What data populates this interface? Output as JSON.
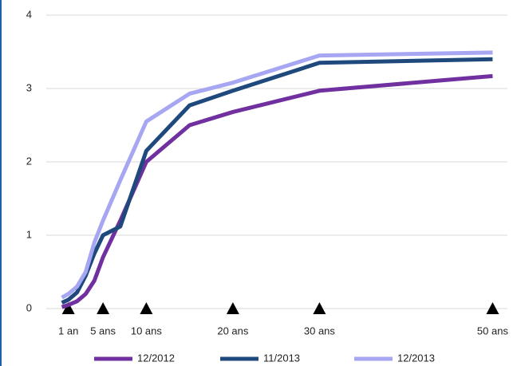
{
  "chart_data": {
    "type": "line",
    "x": [
      0.25,
      1,
      2,
      3,
      4,
      5,
      7,
      10,
      15,
      20,
      30,
      50
    ],
    "series": [
      {
        "name": "12/2012",
        "color": "#7030a0",
        "values": [
          0.02,
          0.05,
          0.1,
          0.2,
          0.38,
          0.7,
          1.2,
          2.0,
          2.5,
          2.68,
          2.97,
          3.17
        ]
      },
      {
        "name": "11/2013",
        "color": "#1f497d",
        "values": [
          0.08,
          0.12,
          0.22,
          0.45,
          0.75,
          1.0,
          1.12,
          2.15,
          2.77,
          2.97,
          3.35,
          3.4
        ]
      },
      {
        "name": "12/2013",
        "color": "#a6a6f2",
        "values": [
          0.15,
          0.2,
          0.3,
          0.5,
          0.9,
          1.2,
          1.75,
          2.55,
          2.93,
          3.08,
          3.45,
          3.49
        ]
      }
    ],
    "xlim": [
      -1,
      53
    ],
    "xticks": [
      {
        "value": 1,
        "label": "1 an"
      },
      {
        "value": 5,
        "label": "5 ans"
      },
      {
        "value": 10,
        "label": "10 ans"
      },
      {
        "value": 20,
        "label": "20 ans"
      },
      {
        "value": 30,
        "label": "30 ans"
      },
      {
        "value": 50,
        "label": "50 ans"
      }
    ],
    "ylim": [
      0,
      4
    ],
    "yticks": [
      0,
      1,
      2,
      3,
      4
    ],
    "grid": true,
    "legend": "bottom"
  }
}
